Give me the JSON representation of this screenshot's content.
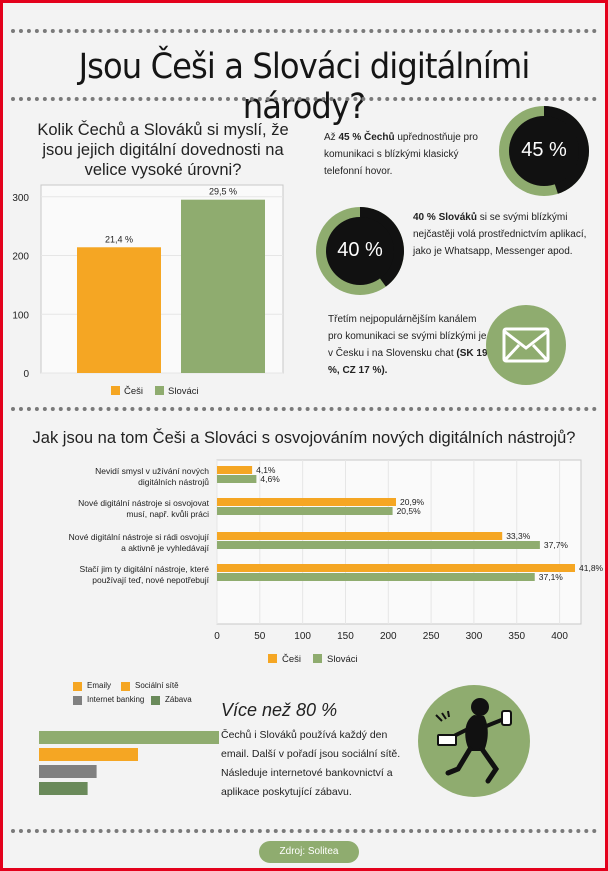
{
  "title": "Jsou Češi a Slováci digitálními národy?",
  "colors": {
    "cz": "#f5a623",
    "sk": "#8fac6f",
    "black": "#111111",
    "grey": "#808080",
    "darkgreen": "#6a8a5a"
  },
  "chart_data": [
    {
      "type": "bar",
      "title": "Kolik Čechů a Slováků si myslí, že jsou jejich digitální dovednosti na velice vysoké úrovni?",
      "categories": [
        "Češi",
        "Slováci"
      ],
      "values": [
        214,
        295
      ],
      "value_labels": [
        "21,4 %",
        "29,5 %"
      ],
      "ylim": [
        0,
        320
      ],
      "yticks": [
        0,
        100,
        200,
        300
      ],
      "legend": [
        "Češi",
        "Slováci"
      ],
      "legend_position": "bottom"
    },
    {
      "type": "bar",
      "orientation": "horizontal",
      "title": "Jak jsou na tom Češi a Slováci s osvojováním nových digitálních nástrojů?",
      "categories": [
        "Nevidí smysl v užívání nových digitálních nástrojů",
        "Nové digitální nástroje si osvojovat musí, např. kvůli práci",
        "Nové digitální nástroje si rádi osvojují a aktivně je vyhledávají",
        "Stačí jim ty digitální nástroje, které používají teď, nové nepotřebují"
      ],
      "category_lines": [
        [
          "Nevidí smysl v užívání nových",
          "digitálních nástrojů"
        ],
        [
          "Nové digitální nástroje si osvojovat",
          "musí, např. kvůli práci"
        ],
        [
          "Nové digitální nástroje si rádi osvojují",
          "a aktivně je vyhledávají"
        ],
        [
          "Stačí jim ty digitální nástroje, které",
          "používají teď, nové nepotřebují"
        ]
      ],
      "series": [
        {
          "name": "Češi",
          "values": [
            41,
            209,
            333,
            418
          ],
          "labels": [
            "4,1%",
            "20,9%",
            "33,3%",
            "41,8%"
          ]
        },
        {
          "name": "Slováci",
          "values": [
            46,
            205,
            377,
            371
          ],
          "labels": [
            "4,6%",
            "20,5%",
            "37,7%",
            "37,1%"
          ]
        }
      ],
      "xlim": [
        0,
        425
      ],
      "xticks": [
        0,
        50,
        100,
        150,
        200,
        250,
        300,
        350,
        400
      ],
      "legend_position": "bottom"
    },
    {
      "type": "bar",
      "orientation": "horizontal",
      "categories": [
        "Emaily",
        "Sociální sítě",
        "Internet banking",
        "Zábava"
      ],
      "values": [
        100,
        55,
        32,
        27
      ],
      "legend_position": "top"
    }
  ],
  "stats": [
    {
      "percent": "45 %",
      "value": 45,
      "text_html": "Až <b>45 % Čechů</b> upřednostňuje pro komunikaci s blízkými klasický telefonní hovor."
    },
    {
      "percent": "40 %",
      "value": 40,
      "text_html": "<b>40 % Slováků</b> si se svými blízkými nejčastěji volá prostřednictvím aplikací, jako je Whatsapp, Messenger apod."
    }
  ],
  "chat_text_html": "Třetím nejpopulárnějším kanálem pro komunikaci se svými blízkými je v Česku i na Slovensku chat <b>(SK 19 %, CZ 17 %).</b>",
  "more_heading": "Více než 80 %",
  "more_text": "Čechů i Slováků používá každý den email. Další v pořadí jsou sociální sítě. Následuje internetové bankovnictví a aplikace poskytující zábavu.",
  "source": "Zdroj: Solitea",
  "icons": {
    "chat": "envelope-icon",
    "person": "person-with-devices-icon"
  }
}
